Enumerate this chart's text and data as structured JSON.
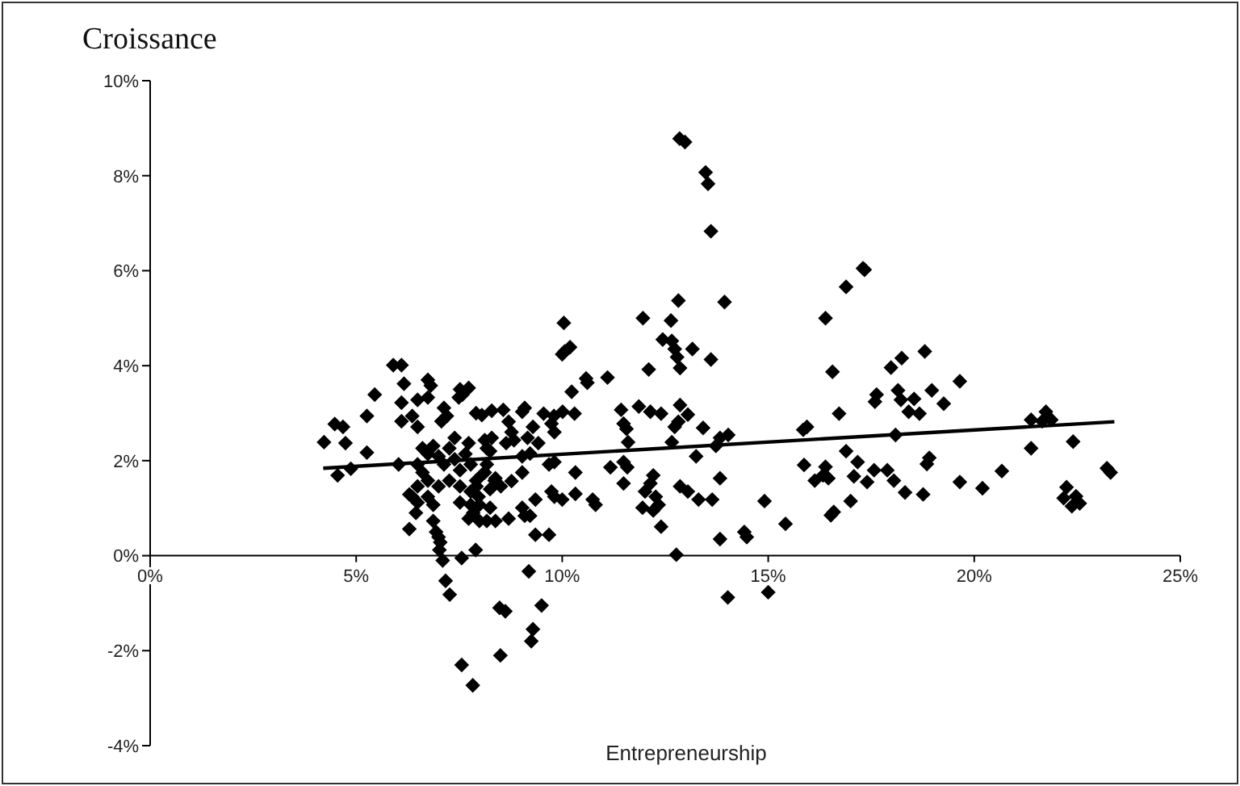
{
  "chart_data": {
    "type": "scatter",
    "ylabel": "Croissance",
    "xlabel": "Entrepreneurship",
    "xlim": [
      0,
      25
    ],
    "ylim": [
      -4,
      10
    ],
    "xticks": [
      {
        "value": 0,
        "label": "0%"
      },
      {
        "value": 5,
        "label": "5%"
      },
      {
        "value": 10,
        "label": "10%"
      },
      {
        "value": 15,
        "label": "15%"
      },
      {
        "value": 20,
        "label": "20%"
      },
      {
        "value": 25,
        "label": "25%"
      }
    ],
    "yticks": [
      {
        "value": -4,
        "label": "-4%"
      },
      {
        "value": -2,
        "label": "-2%"
      },
      {
        "value": 0,
        "label": "0%"
      },
      {
        "value": 2,
        "label": "2%"
      },
      {
        "value": 4,
        "label": "4%"
      },
      {
        "value": 6,
        "label": "6%"
      },
      {
        "value": 8,
        "label": "8%"
      },
      {
        "value": 10,
        "label": "10%"
      }
    ],
    "marker": "diamond",
    "series": [
      {
        "type": "scatter",
        "color": "#000000",
        "x": [
          7.02,
          7.1,
          7.17,
          7.27,
          7.56,
          7.9,
          7.56,
          7.83,
          8.48,
          8.62,
          8.5,
          9.19,
          9.5,
          9.29,
          9.25,
          12.77,
          14.02,
          15.0,
          12.85,
          12.98,
          13.48,
          13.54,
          13.61,
          12.82,
          13.94,
          11.96,
          12.64,
          10.04,
          10.19,
          10.06,
          10.0,
          12.44,
          12.66,
          12.73,
          12.79,
          12.86,
          13.16,
          13.61,
          12.1,
          11.1,
          10.58,
          10.61,
          10.23,
          7.73,
          10.3,
          10.01,
          9.8,
          9.55,
          9.09,
          8.57,
          9.03,
          8.05,
          11.43,
          11.86,
          12.14,
          12.4,
          12.86,
          13.05,
          13.42,
          12.82,
          12.73,
          12.66,
          14.03,
          13.83,
          13.73,
          11.49,
          11.56,
          11.6,
          7.73,
          8.12,
          8.25,
          8.7,
          8.77,
          8.83,
          8.64,
          9.29,
          9.42,
          9.16,
          9.74,
          9.81,
          9.68,
          9.81,
          9.03,
          8.77,
          8.51,
          8.25,
          10.32,
          11.17,
          11.49,
          11.58,
          11.49,
          13.25,
          12.21,
          12.14,
          12.01,
          12.27,
          12.34,
          12.21,
          12.4,
          11.95,
          12.86,
          13.05,
          13.31,
          13.64,
          13.83,
          14.91,
          13.83,
          14.42,
          14.48,
          10.74,
          10.81,
          10.32,
          10.0,
          9.74,
          9.81,
          9.35,
          9.03,
          8.7,
          8.38,
          7.99,
          7.73,
          9.09,
          9.22,
          9.35,
          9.68,
          8.38,
          8.12,
          7.92,
          9.22,
          9.03,
          7.99,
          8.25,
          17.3,
          17.34,
          16.89,
          16.39,
          18.24,
          17.98,
          18.8,
          16.56,
          19.65,
          18.97,
          18.15,
          18.22,
          17.63,
          17.59,
          18.54,
          18.41,
          18.67,
          19.26,
          16.72,
          15.94,
          15.85,
          18.09,
          16.89,
          17.17,
          17.89,
          17.57,
          18.91,
          18.85,
          15.87,
          16.39,
          16.33,
          16.13,
          16.46,
          17.08,
          17.4,
          18.05,
          19.65,
          18.32,
          18.76,
          20.2,
          20.67,
          17.0,
          16.59,
          16.52,
          15.42,
          5.9,
          6.1,
          6.16,
          6.74,
          6.81,
          5.45,
          7.52,
          7.58,
          7.49,
          6.1,
          6.49,
          6.74,
          5.26,
          4.48,
          4.68,
          4.22,
          4.74,
          5.26,
          4.55,
          4.87,
          6.03,
          6.49,
          6.61,
          6.36,
          6.1,
          6.49,
          7.13,
          7.2,
          7.07,
          7.91,
          8.29,
          6.29,
          6.36,
          6.49,
          6.74,
          6.87,
          7.52,
          7.78,
          7.97,
          6.45,
          6.29,
          7.84,
          8.17,
          6.87,
          6.94,
          7.0,
          7.04,
          6.61,
          6.74,
          6.87,
          7.0,
          7.13,
          7.26,
          7.39,
          7.52,
          7.65,
          7.78,
          8.04,
          8.17,
          8.29,
          7.26,
          7.0,
          6.49,
          6.74,
          7.52,
          7.78,
          7.91,
          7.39,
          8.17,
          8.36,
          21.38,
          21.74,
          21.65,
          21.87,
          21.38,
          22.4,
          23.22,
          23.31,
          22.24,
          22.17,
          22.47,
          22.37,
          22.56
        ],
        "values": [
          0.12,
          -0.1,
          -0.53,
          -0.82,
          -0.05,
          0.12,
          -2.3,
          -2.73,
          -1.1,
          -1.17,
          -2.1,
          -0.33,
          -1.05,
          -1.55,
          -1.8,
          0.02,
          -0.88,
          -0.77,
          8.78,
          8.71,
          8.07,
          7.83,
          6.83,
          5.37,
          5.34,
          5.0,
          4.95,
          4.9,
          4.39,
          4.3,
          4.24,
          4.55,
          4.52,
          4.35,
          4.18,
          3.95,
          4.35,
          4.13,
          3.92,
          3.75,
          3.73,
          3.64,
          3.45,
          3.53,
          2.99,
          3.03,
          2.94,
          2.99,
          3.11,
          3.07,
          3.03,
          2.96,
          3.07,
          3.14,
          3.03,
          2.99,
          3.17,
          2.97,
          2.69,
          2.82,
          2.71,
          2.39,
          2.54,
          2.48,
          2.31,
          2.78,
          2.67,
          2.39,
          2.37,
          2.43,
          2.2,
          2.82,
          2.6,
          2.43,
          2.37,
          2.71,
          2.37,
          2.48,
          2.78,
          2.6,
          1.92,
          1.97,
          1.75,
          1.57,
          1.46,
          1.4,
          1.75,
          1.86,
          1.97,
          1.86,
          1.52,
          2.09,
          1.69,
          1.52,
          1.35,
          1.24,
          1.07,
          0.95,
          0.61,
          1.01,
          1.46,
          1.35,
          1.18,
          1.18,
          1.63,
          1.15,
          0.35,
          0.5,
          0.39,
          1.18,
          1.07,
          1.3,
          1.18,
          1.35,
          1.24,
          1.18,
          1.01,
          0.78,
          0.73,
          0.73,
          0.78,
          0.84,
          0.84,
          0.44,
          0.44,
          1.63,
          1.75,
          1.46,
          2.15,
          2.09,
          1.07,
          1.01,
          6.05,
          6.02,
          5.66,
          5.0,
          4.16,
          3.96,
          4.3,
          3.87,
          3.67,
          3.48,
          3.48,
          3.28,
          3.39,
          3.24,
          3.3,
          3.03,
          2.99,
          3.2,
          2.99,
          2.71,
          2.65,
          2.54,
          2.2,
          1.97,
          1.8,
          1.8,
          2.06,
          1.93,
          1.91,
          1.87,
          1.69,
          1.58,
          1.63,
          1.67,
          1.55,
          1.58,
          1.55,
          1.33,
          1.29,
          1.42,
          1.78,
          1.15,
          0.92,
          0.85,
          0.67,
          4.01,
          4.01,
          3.62,
          3.7,
          3.58,
          3.39,
          3.5,
          3.39,
          3.33,
          3.22,
          3.28,
          3.33,
          2.94,
          2.77,
          2.71,
          2.39,
          2.37,
          2.17,
          1.69,
          1.83,
          1.92,
          1.92,
          1.75,
          2.94,
          2.83,
          2.71,
          3.11,
          2.94,
          2.83,
          3.0,
          3.05,
          1.29,
          1.24,
          1.12,
          1.24,
          1.07,
          1.12,
          1.07,
          1.24,
          0.9,
          0.56,
          0.9,
          0.73,
          0.73,
          0.5,
          0.39,
          0.28,
          2.26,
          2.14,
          2.31,
          2.09,
          1.92,
          2.26,
          2.03,
          1.8,
          2.14,
          1.92,
          1.69,
          2.26,
          2.48,
          1.58,
          1.46,
          1.46,
          1.58,
          1.46,
          1.35,
          1.58,
          2.48,
          1.92,
          1.58,
          2.86,
          3.03,
          2.83,
          2.86,
          2.26,
          2.4,
          1.84,
          1.75,
          1.44,
          1.21,
          1.25,
          1.04,
          1.1
        ]
      },
      {
        "type": "line",
        "color": "#000000",
        "marker": "none",
        "x": [
          4.2,
          23.4
        ],
        "values": [
          1.84,
          2.82
        ]
      }
    ]
  }
}
